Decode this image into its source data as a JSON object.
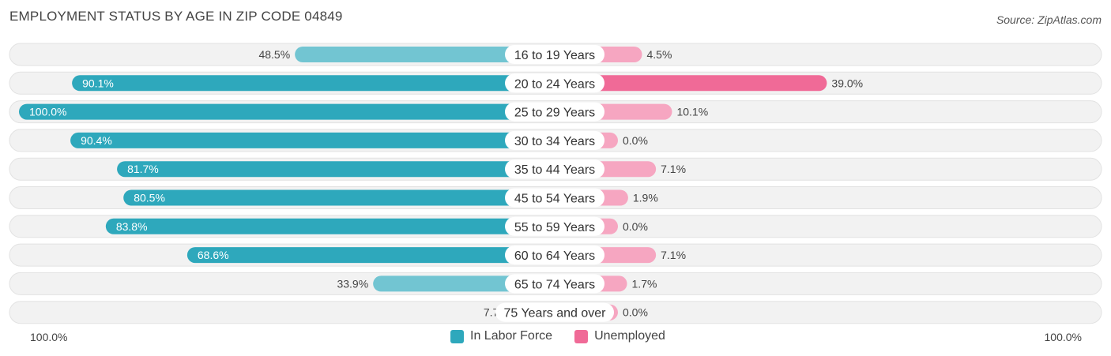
{
  "header": {
    "title": "EMPLOYMENT STATUS BY AGE IN ZIP CODE 04849",
    "source": "Source: ZipAtlas.com"
  },
  "colors": {
    "labor_force": "#2ea8bc",
    "labor_force_light": "#72c5d2",
    "unemployed": "#f06a97",
    "unemployed_light": "#f6a6c1",
    "row_bg": "#f2f2f2",
    "row_border": "#e2e2e2"
  },
  "axis": {
    "left_label": "100.0%",
    "right_label": "100.0%"
  },
  "legend": [
    {
      "label": "In Labor Force",
      "color": "#2ea8bc"
    },
    {
      "label": "Unemployed",
      "color": "#f06a97"
    }
  ],
  "chart_data": {
    "type": "bar",
    "title": "EMPLOYMENT STATUS BY AGE IN ZIP CODE 04849",
    "categories": [
      "16 to 19 Years",
      "20 to 24 Years",
      "25 to 29 Years",
      "30 to 34 Years",
      "35 to 44 Years",
      "45 to 54 Years",
      "55 to 59 Years",
      "60 to 64 Years",
      "65 to 74 Years",
      "75 Years and over"
    ],
    "series": [
      {
        "name": "In Labor Force",
        "values": [
          48.5,
          90.1,
          100.0,
          90.4,
          81.7,
          80.5,
          83.8,
          68.6,
          33.9,
          7.7
        ],
        "labels": [
          "48.5%",
          "90.1%",
          "100.0%",
          "90.4%",
          "81.7%",
          "80.5%",
          "83.8%",
          "68.6%",
          "33.9%",
          "7.7%"
        ]
      },
      {
        "name": "Unemployed",
        "values": [
          4.5,
          39.0,
          10.1,
          0.0,
          7.1,
          1.9,
          0.0,
          7.1,
          1.7,
          0.0
        ],
        "labels": [
          "4.5%",
          "39.0%",
          "10.1%",
          "0.0%",
          "7.1%",
          "1.9%",
          "0.0%",
          "7.1%",
          "1.7%",
          "0.0%"
        ]
      }
    ],
    "xlim": [
      -100,
      100
    ],
    "orientation": "horizontal-diverging",
    "legend_position": "bottom-center"
  }
}
